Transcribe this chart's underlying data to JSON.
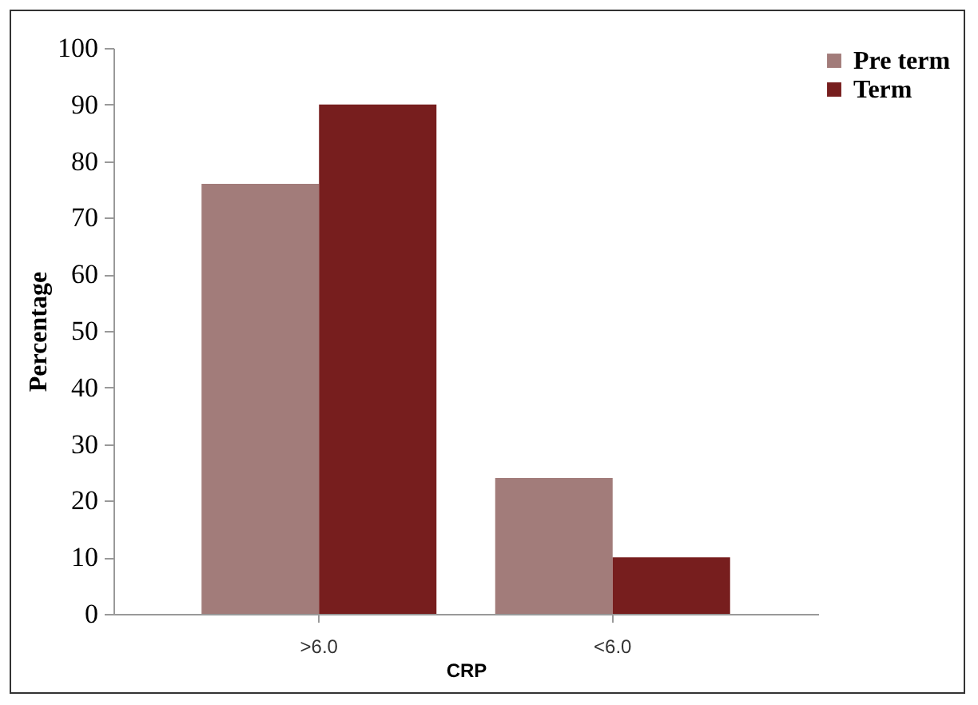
{
  "chart_data": {
    "type": "bar",
    "xlabel": "CRP",
    "ylabel": "Percentage",
    "categories": [
      ">6.0",
      "<6.0"
    ],
    "series": [
      {
        "name": "Pre term",
        "color": "#a27c7a",
        "values": [
          76,
          24
        ]
      },
      {
        "name": "Term",
        "color": "#771e1e",
        "values": [
          90,
          10
        ]
      }
    ],
    "ylim": [
      0,
      100
    ],
    "yticks": [
      0,
      10,
      20,
      30,
      40,
      50,
      60,
      70,
      80,
      90,
      100
    ],
    "grid": false,
    "legend": "right"
  }
}
